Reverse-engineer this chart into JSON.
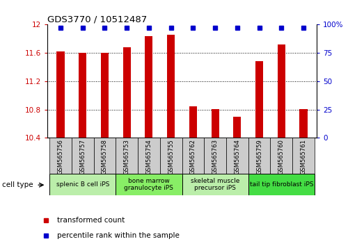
{
  "title": "GDS3770 / 10512487",
  "samples": [
    "GSM565756",
    "GSM565757",
    "GSM565758",
    "GSM565753",
    "GSM565754",
    "GSM565755",
    "GSM565762",
    "GSM565763",
    "GSM565764",
    "GSM565759",
    "GSM565760",
    "GSM565761"
  ],
  "red_values": [
    11.62,
    11.6,
    11.6,
    11.68,
    11.84,
    11.86,
    10.84,
    10.81,
    10.7,
    11.48,
    11.72,
    10.81
  ],
  "blue_values": [
    97,
    97,
    97,
    97,
    97,
    97,
    97,
    97,
    97,
    97,
    97,
    97
  ],
  "ylim_left": [
    10.4,
    12.0
  ],
  "ylim_right": [
    0,
    100
  ],
  "yticks_left": [
    10.4,
    10.8,
    11.2,
    11.6,
    12.0
  ],
  "yticks_right": [
    0,
    25,
    50,
    75,
    100
  ],
  "ytick_labels_left": [
    "10.4",
    "10.8",
    "11.2",
    "11.6",
    "12"
  ],
  "ytick_labels_right": [
    "0",
    "25",
    "50",
    "75",
    "100%"
  ],
  "bar_color": "#cc0000",
  "dot_color": "#0000cc",
  "bar_width": 0.35,
  "cell_types": [
    {
      "label": "splenic B cell iPS",
      "start": 0,
      "end": 3,
      "color": "#bbeeaa"
    },
    {
      "label": "bone marrow\ngranulocyte iPS",
      "start": 3,
      "end": 6,
      "color": "#88ee66"
    },
    {
      "label": "skeletal muscle\nprecursor iPS",
      "start": 6,
      "end": 9,
      "color": "#bbeeaa"
    },
    {
      "label": "tail tip fibroblast iPS",
      "start": 9,
      "end": 12,
      "color": "#44dd44"
    }
  ],
  "legend_red_label": "transformed count",
  "legend_blue_label": "percentile rank within the sample",
  "cell_type_label": "cell type",
  "tick_color_left": "#cc0000",
  "tick_color_right": "#0000cc",
  "grey_box_color": "#cccccc",
  "spine_color": "#000000"
}
